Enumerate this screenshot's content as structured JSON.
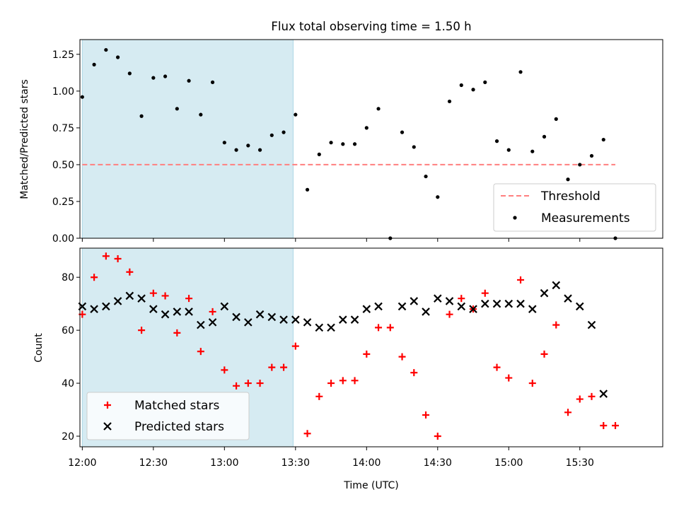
{
  "chart_data": [
    {
      "type": "scatter",
      "title": "Flux total observing time = 1.50 h",
      "xlabel": "",
      "ylabel": "Matched/Predicted stars",
      "xlim": [
        "11:59",
        "16:05"
      ],
      "ylim": [
        0,
        1.35
      ],
      "yticks": [
        0.0,
        0.25,
        0.5,
        0.75,
        1.0,
        1.25
      ],
      "ytick_labels": [
        "0.00",
        "0.25",
        "0.50",
        "0.75",
        "1.00",
        "1.25"
      ],
      "shaded_region": {
        "x_start": "12:00",
        "x_end": "13:29",
        "color": "#add8e6"
      },
      "threshold": {
        "name": "Threshold",
        "value": 0.5,
        "x_start": "12:00",
        "x_end": "15:45",
        "color": "#ff7f7f"
      },
      "series": [
        {
          "name": "Measurements",
          "color": "#000000",
          "marker": "dot",
          "x": [
            "12:00",
            "12:05",
            "12:10",
            "12:15",
            "12:20",
            "12:25",
            "12:30",
            "12:35",
            "12:40",
            "12:45",
            "12:50",
            "12:55",
            "13:00",
            "13:05",
            "13:10",
            "13:15",
            "13:20",
            "13:25",
            "13:30",
            "13:35",
            "13:40",
            "13:45",
            "13:50",
            "13:55",
            "14:00",
            "14:05",
            "14:10",
            "14:15",
            "14:20",
            "14:25",
            "14:30",
            "14:35",
            "14:40",
            "14:45",
            "14:50",
            "14:55",
            "15:00",
            "15:05",
            "15:10",
            "15:15",
            "15:20",
            "15:25",
            "15:30",
            "15:35",
            "15:40",
            "15:45"
          ],
          "y": [
            0.96,
            1.18,
            1.28,
            1.23,
            1.12,
            0.83,
            1.09,
            1.1,
            0.88,
            1.07,
            0.84,
            1.06,
            0.65,
            0.6,
            0.63,
            0.6,
            0.7,
            0.72,
            0.84,
            0.33,
            0.57,
            0.65,
            0.64,
            0.64,
            0.75,
            0.88,
            0.0,
            0.72,
            0.62,
            0.42,
            0.28,
            0.93,
            1.04,
            1.01,
            1.06,
            0.66,
            0.6,
            1.13,
            0.59,
            0.69,
            0.81,
            0.4,
            0.5,
            0.56,
            0.67,
            0.0
          ]
        }
      ],
      "legend": {
        "placement": "lower-right",
        "entries": [
          "Threshold",
          "Measurements"
        ]
      }
    },
    {
      "type": "scatter",
      "title": "",
      "xlabel": "Time (UTC)",
      "ylabel": "Count",
      "xlim": [
        "11:59",
        "16:05"
      ],
      "ylim": [
        16,
        91
      ],
      "yticks": [
        20,
        40,
        60,
        80
      ],
      "xticks": [
        "12:00",
        "12:30",
        "13:00",
        "13:30",
        "14:00",
        "14:30",
        "15:00",
        "15:30"
      ],
      "shaded_region": {
        "x_start": "12:00",
        "x_end": "13:29",
        "color": "#add8e6"
      },
      "series": [
        {
          "name": "Matched stars",
          "color": "#ff0000",
          "marker": "plus",
          "x": [
            "12:00",
            "12:05",
            "12:10",
            "12:15",
            "12:20",
            "12:25",
            "12:30",
            "12:35",
            "12:40",
            "12:45",
            "12:50",
            "12:55",
            "13:00",
            "13:05",
            "13:10",
            "13:15",
            "13:20",
            "13:25",
            "13:30",
            "13:35",
            "13:40",
            "13:45",
            "13:50",
            "13:55",
            "14:00",
            "14:05",
            "14:10",
            "14:15",
            "14:20",
            "14:25",
            "14:30",
            "14:35",
            "14:40",
            "14:45",
            "14:50",
            "14:55",
            "15:00",
            "15:05",
            "15:10",
            "15:15",
            "15:20",
            "15:25",
            "15:30",
            "15:35",
            "15:40",
            "15:45"
          ],
          "y": [
            66,
            80,
            88,
            87,
            82,
            60,
            74,
            73,
            59,
            72,
            52,
            67,
            45,
            39,
            40,
            40,
            46,
            46,
            54,
            21,
            35,
            40,
            41,
            41,
            51,
            61,
            61,
            50,
            44,
            28,
            20,
            66,
            72,
            68,
            74,
            46,
            42,
            79,
            40,
            51,
            62,
            29,
            34,
            35,
            24,
            24
          ]
        },
        {
          "name": "Predicted stars",
          "color": "#000000",
          "marker": "x",
          "x": [
            "12:00",
            "12:05",
            "12:10",
            "12:15",
            "12:20",
            "12:25",
            "12:30",
            "12:35",
            "12:40",
            "12:45",
            "12:50",
            "12:55",
            "13:00",
            "13:05",
            "13:10",
            "13:15",
            "13:20",
            "13:25",
            "13:30",
            "13:35",
            "13:40",
            "13:45",
            "13:50",
            "13:55",
            "14:00",
            "14:05",
            "14:15",
            "14:20",
            "14:25",
            "14:30",
            "14:35",
            "14:40",
            "14:45",
            "14:50",
            "14:55",
            "15:00",
            "15:05",
            "15:10",
            "15:15",
            "15:20",
            "15:25",
            "15:30",
            "15:35",
            "15:40"
          ],
          "y": [
            69,
            68,
            69,
            71,
            73,
            72,
            68,
            66,
            67,
            67,
            62,
            63,
            69,
            65,
            63,
            66,
            65,
            64,
            64,
            63,
            61,
            61,
            64,
            64,
            68,
            69,
            69,
            71,
            67,
            72,
            71,
            69,
            68,
            70,
            70,
            70,
            70,
            68,
            74,
            77,
            72,
            69,
            62,
            36
          ]
        }
      ],
      "legend": {
        "placement": "lower-left",
        "entries": [
          "Matched stars",
          "Predicted stars"
        ]
      }
    }
  ]
}
